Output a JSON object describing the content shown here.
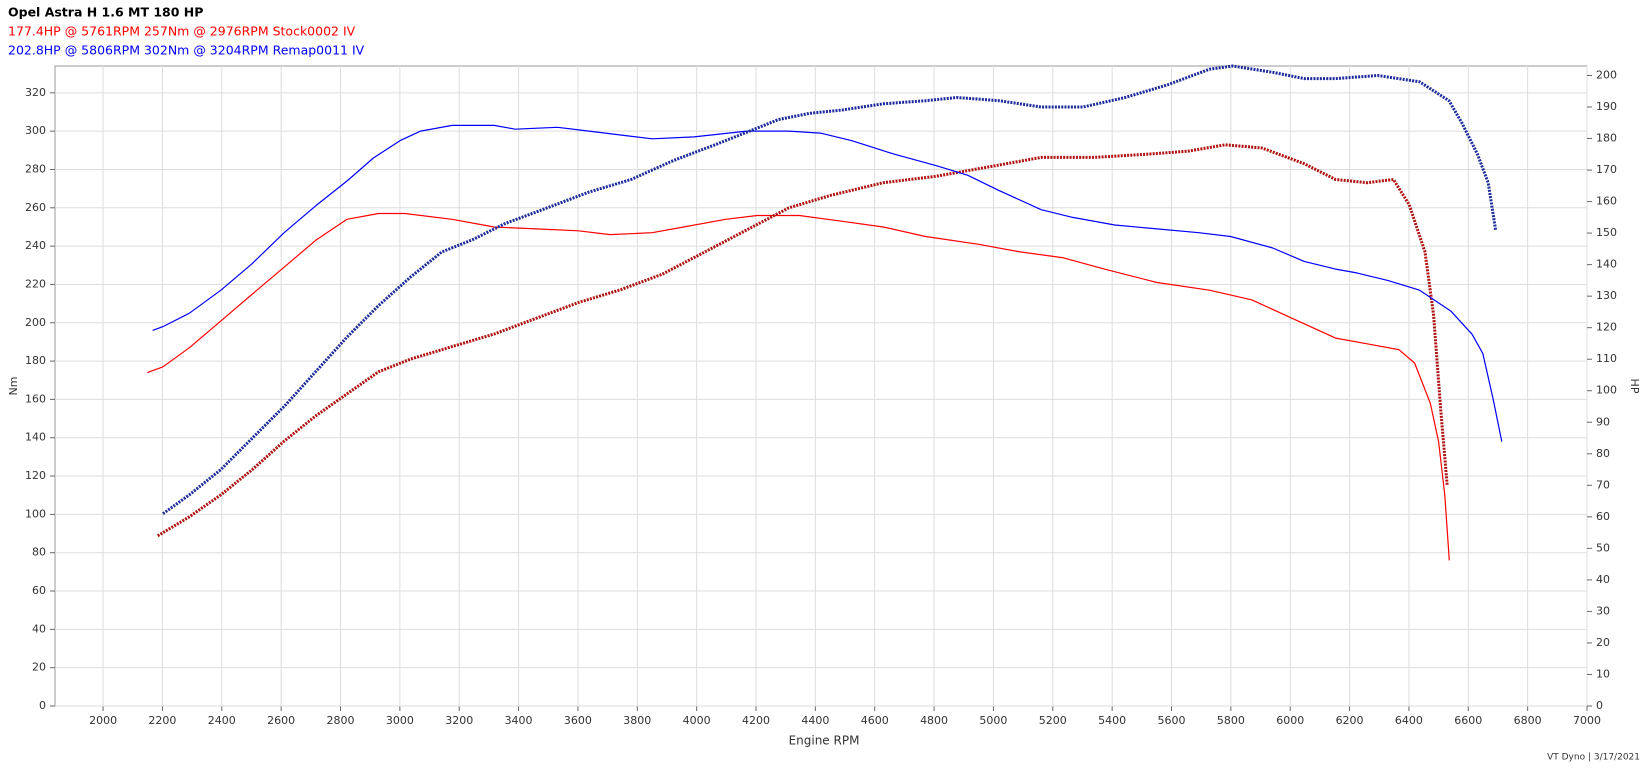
{
  "chart_data": {
    "type": "line",
    "title": "Opel Astra H 1.6 MT 180 HP",
    "subtitles": [
      {
        "text": "177.4HP @  5761RPM  257Nm @ 2976RPM  Stock0002 IV",
        "color": "#ff0000"
      },
      {
        "text": "202.8HP @  5806RPM  302Nm @ 3204RPM  Remap0011 IV",
        "color": "#0000ff"
      }
    ],
    "x_label": "Engine RPM",
    "y_label": "Nm",
    "y2_label": "HP",
    "footer": "VT Dyno | 3/17/2021",
    "xlim": [
      1838,
      7000
    ],
    "xticks": [
      2000,
      2200,
      2400,
      2600,
      2800,
      3000,
      3200,
      3400,
      3600,
      3800,
      4000,
      4200,
      4400,
      4600,
      4800,
      5000,
      5200,
      5400,
      5600,
      5800,
      6000,
      6200,
      6400,
      6600,
      6800,
      7000
    ],
    "ylim": [
      0,
      334
    ],
    "yticks": [
      0,
      20,
      40,
      60,
      80,
      100,
      120,
      140,
      160,
      180,
      200,
      220,
      240,
      260,
      280,
      300,
      320
    ],
    "y2lim": [
      0,
      203
    ],
    "y2ticks": [
      0,
      10,
      20,
      30,
      40,
      50,
      60,
      70,
      80,
      90,
      100,
      110,
      120,
      130,
      140,
      150,
      160,
      170,
      180,
      190,
      200
    ],
    "grid": true,
    "series": [
      {
        "color": "#ff0000",
        "style": "solid",
        "x": [
          2149,
          2202,
          2291,
          2397,
          2503,
          2610,
          2716,
          2822,
          2928,
          3017,
          3176,
          3318,
          3460,
          3602,
          3708,
          3850,
          3956,
          4098,
          4204,
          4346,
          4488,
          4629,
          4771,
          4948,
          5090,
          5232,
          5374,
          5551,
          5728,
          5870,
          6011,
          6153,
          6259,
          6366,
          6419,
          6472,
          6500,
          6521,
          6536
        ],
        "values": [
          174,
          177,
          187,
          201,
          215,
          229,
          243,
          254,
          257,
          257,
          254,
          250,
          249,
          248,
          246,
          247,
          250,
          254,
          256,
          256,
          253,
          250,
          245,
          241,
          237,
          234,
          228,
          221,
          217,
          212,
          202,
          192,
          189,
          186,
          179,
          158,
          138,
          110,
          76
        ]
      },
      {
        "color": "#b01010",
        "style": "dashed",
        "axis": "y2",
        "x": [
          2184,
          2291,
          2397,
          2503,
          2610,
          2716,
          2822,
          2928,
          3035,
          3176,
          3318,
          3460,
          3602,
          3743,
          3885,
          4027,
          4169,
          4310,
          4452,
          4629,
          4806,
          4984,
          5161,
          5338,
          5515,
          5657,
          5781,
          5905,
          6047,
          6153,
          6259,
          6348,
          6401,
          6454,
          6483,
          6507,
          6529
        ],
        "values": [
          54,
          60,
          67,
          75,
          84,
          92,
          99,
          106,
          110,
          114,
          118,
          123,
          128,
          132,
          137,
          144,
          151,
          158,
          162,
          166,
          168,
          171,
          174,
          174,
          175,
          176,
          178,
          177,
          172,
          167,
          166,
          167,
          159,
          144,
          124,
          94,
          70
        ]
      },
      {
        "color": "#0000ff",
        "style": "solid",
        "x": [
          2167,
          2202,
          2291,
          2397,
          2503,
          2610,
          2716,
          2822,
          2911,
          3000,
          3070,
          3176,
          3318,
          3389,
          3531,
          3637,
          3850,
          3991,
          4169,
          4310,
          4417,
          4523,
          4665,
          4806,
          4913,
          5019,
          5161,
          5267,
          5409,
          5551,
          5692,
          5799,
          5941,
          6047,
          6153,
          6224,
          6330,
          6436,
          6542,
          6613,
          6649,
          6684,
          6713
        ],
        "values": [
          196,
          198,
          205,
          217,
          231,
          247,
          261,
          274,
          286,
          295,
          300,
          303,
          303,
          301,
          302,
          300,
          296,
          297,
          300,
          300,
          299,
          295,
          288,
          282,
          277,
          269,
          259,
          255,
          251,
          249,
          247,
          245,
          239,
          232,
          228,
          226,
          222,
          217,
          206,
          194,
          184,
          160,
          138
        ]
      },
      {
        "color": "#1c2a9c",
        "style": "dashed",
        "axis": "y2",
        "x": [
          2202,
          2291,
          2397,
          2503,
          2610,
          2716,
          2822,
          2928,
          3035,
          3141,
          3247,
          3354,
          3496,
          3637,
          3779,
          3921,
          4062,
          4169,
          4275,
          4381,
          4488,
          4629,
          4771,
          4877,
          5019,
          5161,
          5302,
          5444,
          5586,
          5728,
          5806,
          5941,
          6047,
          6153,
          6295,
          6436,
          6535,
          6578,
          6631,
          6667,
          6692
        ],
        "values": [
          61,
          67,
          75,
          85,
          95,
          106,
          117,
          127,
          136,
          144,
          148,
          153,
          158,
          163,
          167,
          173,
          178,
          182,
          186,
          188,
          189,
          191,
          192,
          193,
          192,
          190,
          190,
          193,
          197,
          202,
          203,
          201,
          199,
          199,
          200,
          198,
          192,
          185,
          175,
          166,
          151
        ]
      }
    ]
  }
}
